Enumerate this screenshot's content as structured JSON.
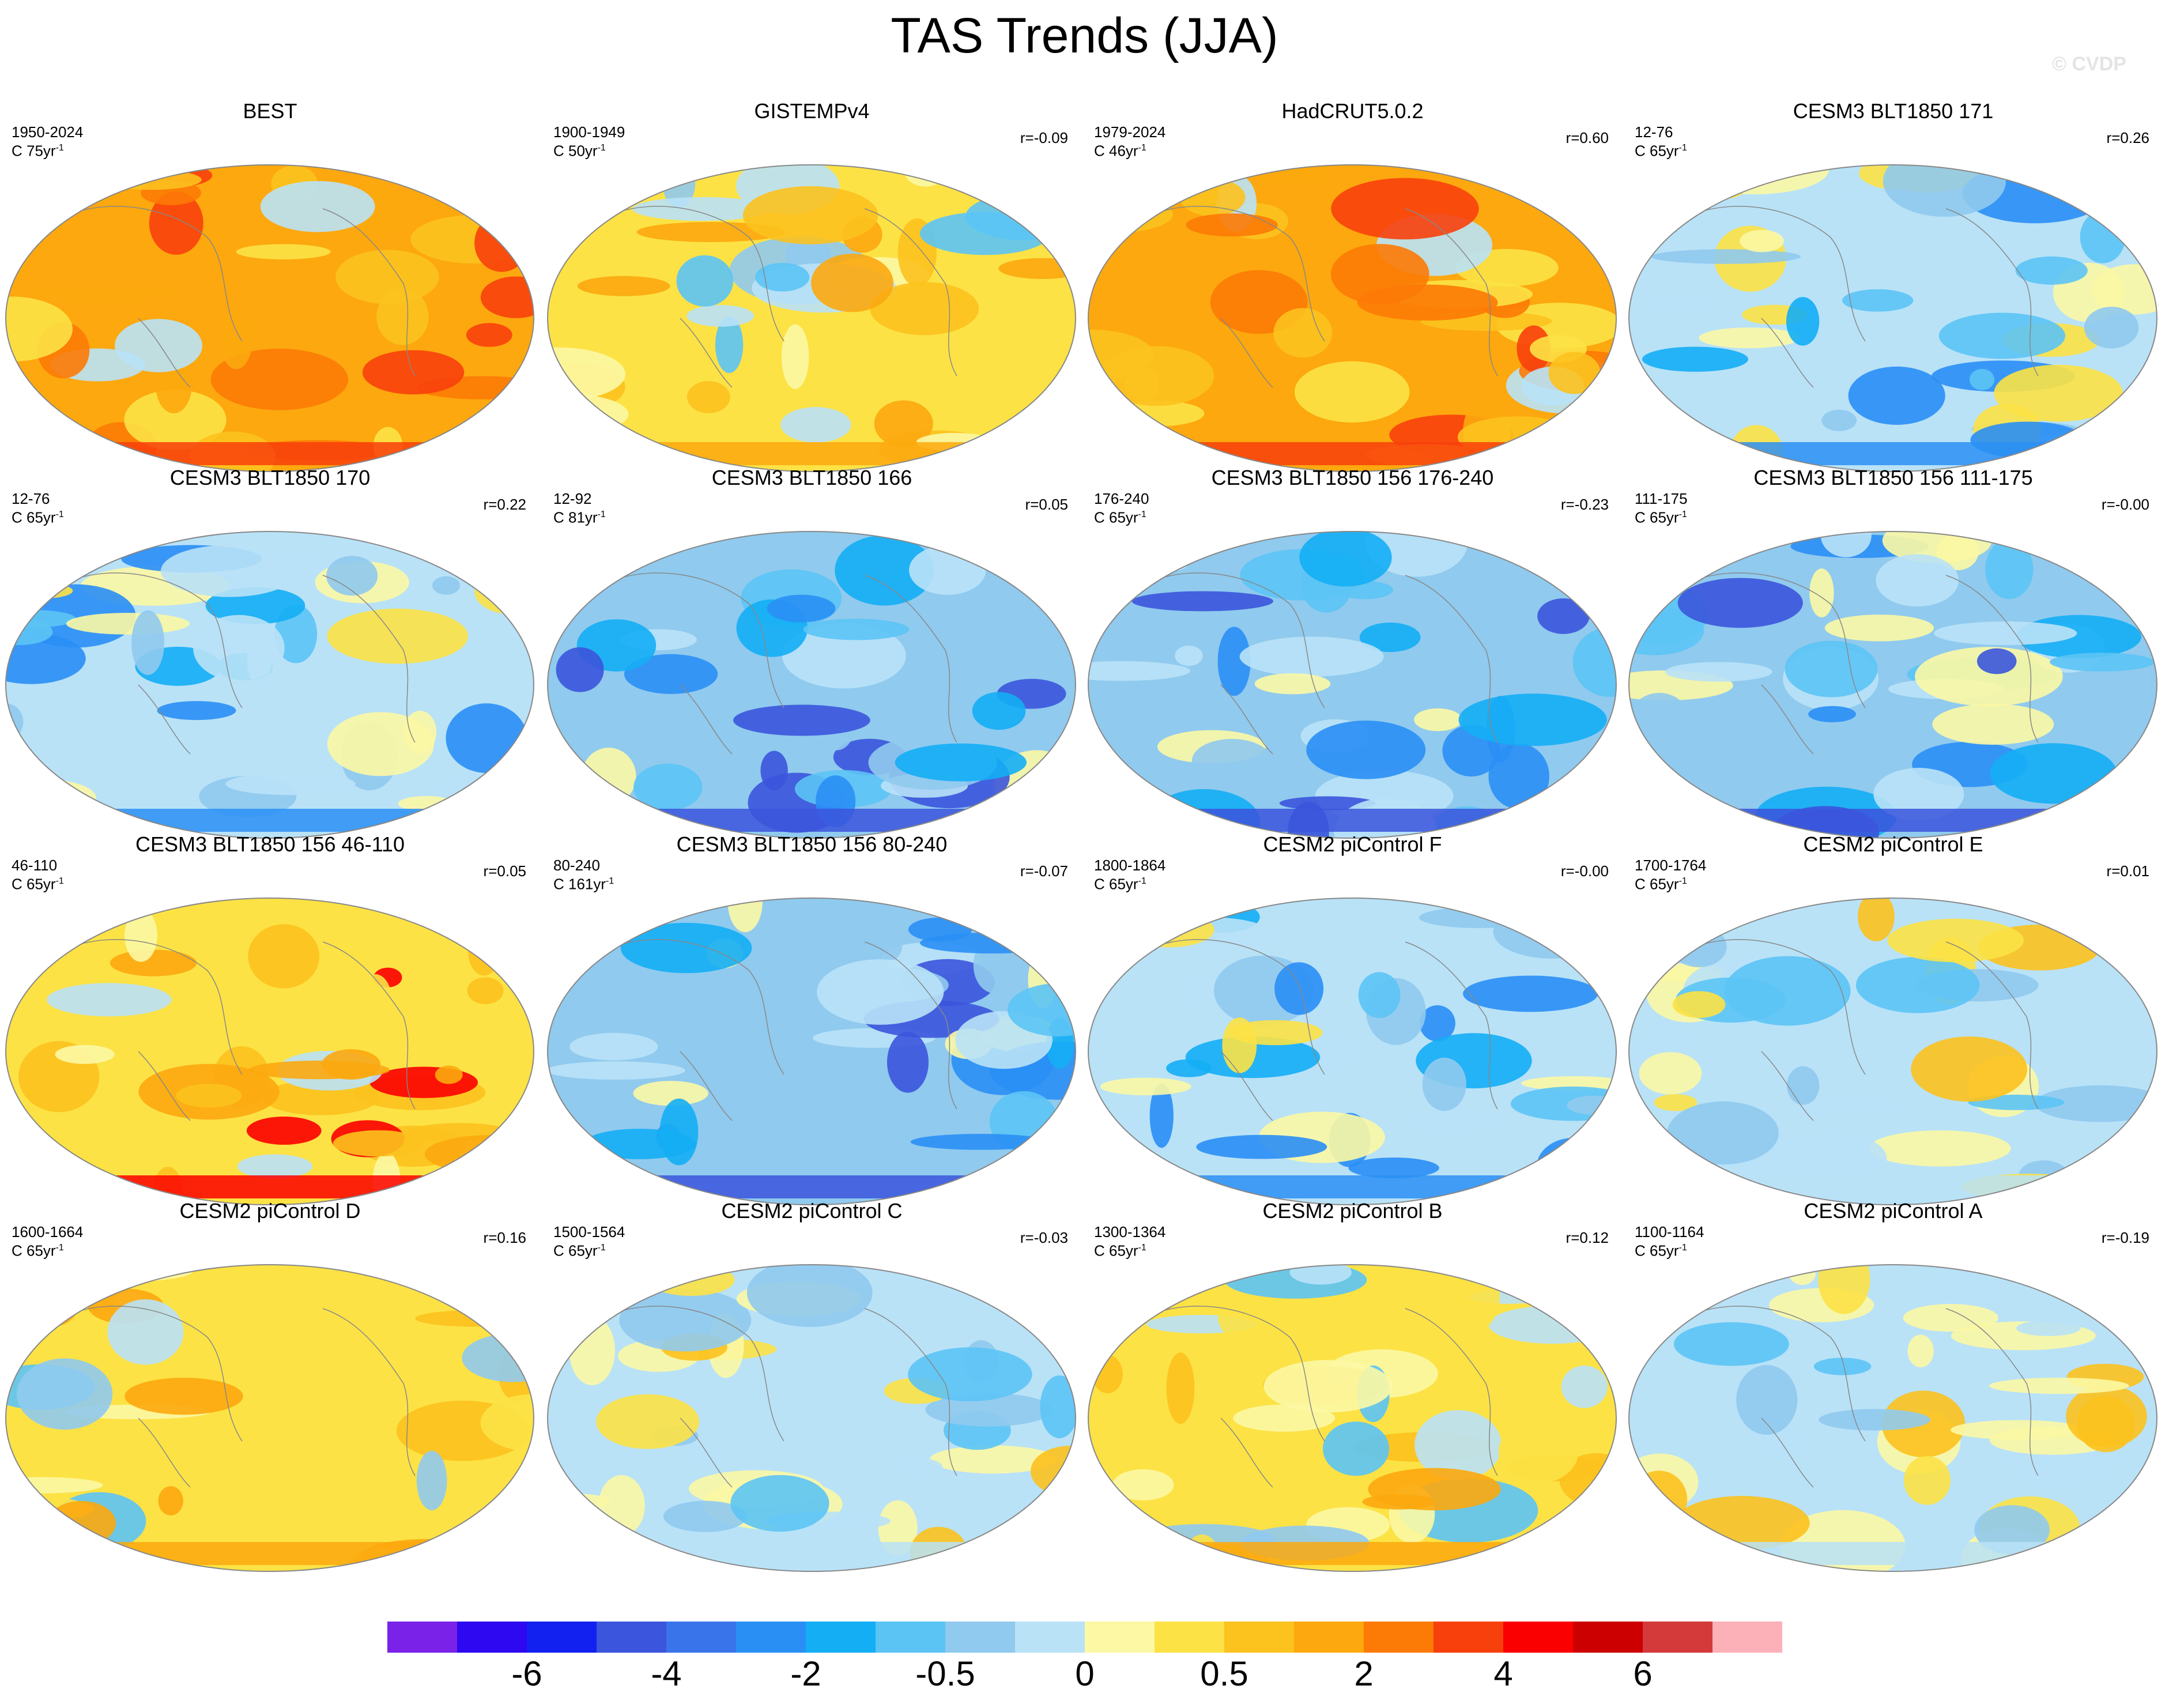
{
  "title": "TAS Trends (JJA)",
  "watermark": "© CVDP",
  "panels": [
    {
      "title": "BEST",
      "period": "1950-2024",
      "trend_prefix": "C 75yr",
      "trend_exp": "-1",
      "corr": "",
      "pattern": "warm-strong"
    },
    {
      "title": "GISTEMPv4",
      "period": "1900-1949",
      "trend_prefix": "C 50yr",
      "trend_exp": "-1",
      "corr": "r=-0.09",
      "pattern": "warm-mixed"
    },
    {
      "title": "HadCRUT5.0.2",
      "period": "1979-2024",
      "trend_prefix": "C 46yr",
      "trend_exp": "-1",
      "corr": "r=0.60",
      "pattern": "warm-strong"
    },
    {
      "title": "CESM3 BLT1850 171",
      "period": "12-76",
      "trend_prefix": "C 65yr",
      "trend_exp": "-1",
      "corr": "r=0.26",
      "pattern": "cool-mixed"
    },
    {
      "title": "CESM3 BLT1850 170",
      "period": "12-76",
      "trend_prefix": "C 65yr",
      "trend_exp": "-1",
      "corr": "r=0.22",
      "pattern": "cool-mixed"
    },
    {
      "title": "CESM3 BLT1850 166",
      "period": "12-92",
      "trend_prefix": "C 81yr",
      "trend_exp": "-1",
      "corr": "r=0.05",
      "pattern": "cool"
    },
    {
      "title": "CESM3 BLT1850 156 176-240",
      "period": "176-240",
      "trend_prefix": "C 65yr",
      "trend_exp": "-1",
      "corr": "r=-0.23",
      "pattern": "cool"
    },
    {
      "title": "CESM3 BLT1850 156 111-175",
      "period": "111-175",
      "trend_prefix": "C 65yr",
      "trend_exp": "-1",
      "corr": "r=-0.00",
      "pattern": "cool"
    },
    {
      "title": "CESM3 BLT1850 156 46-110",
      "period": "46-110",
      "trend_prefix": "C 65yr",
      "trend_exp": "-1",
      "corr": "r=0.05",
      "pattern": "warm"
    },
    {
      "title": "CESM3 BLT1850 156 80-240",
      "period": "80-240",
      "trend_prefix": "C 161yr",
      "trend_exp": "-1",
      "corr": "r=-0.07",
      "pattern": "cool"
    },
    {
      "title": "CESM2 piControl F",
      "period": "1800-1864",
      "trend_prefix": "C 65yr",
      "trend_exp": "-1",
      "corr": "r=-0.00",
      "pattern": "cool-mixed"
    },
    {
      "title": "CESM2 piControl E",
      "period": "1700-1764",
      "trend_prefix": "C 65yr",
      "trend_exp": "-1",
      "corr": "r=0.01",
      "pattern": "mixed"
    },
    {
      "title": "CESM2 piControl D",
      "period": "1600-1664",
      "trend_prefix": "C 65yr",
      "trend_exp": "-1",
      "corr": "r=0.16",
      "pattern": "warm-mixed"
    },
    {
      "title": "CESM2 piControl C",
      "period": "1500-1564",
      "trend_prefix": "C 65yr",
      "trend_exp": "-1",
      "corr": "r=-0.03",
      "pattern": "mixed"
    },
    {
      "title": "CESM2 piControl B",
      "period": "1300-1364",
      "trend_prefix": "C 65yr",
      "trend_exp": "-1",
      "corr": "r=0.12",
      "pattern": "warm-mixed"
    },
    {
      "title": "CESM2 piControl A",
      "period": "1100-1164",
      "trend_prefix": "C 65yr",
      "trend_exp": "-1",
      "corr": "r=-0.19",
      "pattern": "mixed"
    }
  ],
  "colorbar": {
    "colors": [
      "#7b22e8",
      "#2d08f0",
      "#1321f0",
      "#3b55dc",
      "#3a74ea",
      "#2a8ff5",
      "#14aef5",
      "#5cc4f5",
      "#90caee",
      "#b9e2f7",
      "#fcf8a4",
      "#fce245",
      "#fcc21e",
      "#fca80e",
      "#fc7a06",
      "#f8400c",
      "#fb0000",
      "#cc0000",
      "#d43a3a",
      "#fcb0b8"
    ],
    "labels": [
      {
        "text": "-6",
        "after_box": 2
      },
      {
        "text": "-4",
        "after_box": 4
      },
      {
        "text": "-2",
        "after_box": 6
      },
      {
        "text": "-0.5",
        "after_box": 8
      },
      {
        "text": "0",
        "after_box": 10
      },
      {
        "text": "0.5",
        "after_box": 12
      },
      {
        "text": "2",
        "after_box": 14
      },
      {
        "text": "4",
        "after_box": 16
      },
      {
        "text": "6",
        "after_box": 18
      }
    ]
  }
}
